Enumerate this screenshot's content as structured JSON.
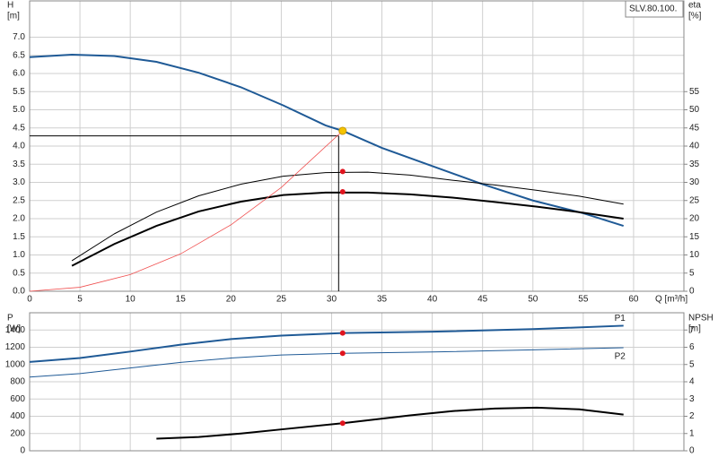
{
  "chart_data": [
    {
      "type": "line",
      "ylabel": "H",
      "yunit": "[m]",
      "y2label": "eta",
      "y2unit": "[%]",
      "xlabel": "Q [m³/h]",
      "annotation": "SLV.80.100.",
      "xlim": [
        0,
        65
      ],
      "xticks": [
        0,
        5,
        10,
        15,
        20,
        25,
        30,
        35,
        40,
        45,
        50,
        55,
        60
      ],
      "ylim": [
        0,
        8
      ],
      "yticks": [
        {
          "value": 0,
          "label": "0.0"
        },
        0.5,
        {
          "value": 1,
          "label": "1.0"
        },
        1.5,
        {
          "value": 2,
          "label": "2.0"
        },
        2.5,
        {
          "value": 3,
          "label": "3.0"
        },
        3.5,
        {
          "value": 4,
          "label": "4.0"
        },
        4.5,
        {
          "value": 5,
          "label": "5.0"
        },
        5.5,
        {
          "value": 6,
          "label": "6.0"
        },
        6.5,
        {
          "value": 7,
          "label": "7.0"
        }
      ],
      "y2lim": [
        0,
        80
      ],
      "y2ticks": [
        0,
        5,
        10,
        15,
        20,
        25,
        30,
        35,
        40,
        45,
        50,
        55
      ],
      "grid": true,
      "reference_lines": {
        "x": 30.7,
        "y": 4.28
      },
      "series": [
        {
          "color": "#1f5a96",
          "width": 2,
          "x": [
            0,
            4.2,
            8.4,
            12.6,
            16.8,
            21,
            25.2,
            29.4,
            31.1,
            35,
            40,
            45,
            50,
            55,
            59
          ],
          "values": [
            6.45,
            6.52,
            6.48,
            6.32,
            6.02,
            5.62,
            5.12,
            4.57,
            4.42,
            3.95,
            3.45,
            2.95,
            2.5,
            2.15,
            1.8
          ]
        },
        {
          "color": "#000000",
          "width": 1,
          "axis": "y2",
          "x": [
            4.2,
            8.4,
            12.6,
            16.8,
            21,
            25.2,
            29.4,
            33.6,
            37.8,
            42,
            46.2,
            50.4,
            54.6,
            59
          ],
          "values": [
            8.4,
            15.8,
            21.8,
            26.3,
            29.5,
            31.7,
            32.7,
            32.8,
            32,
            30.6,
            29.3,
            27.8,
            26.2,
            24
          ]
        },
        {
          "color": "#000000",
          "width": 2,
          "axis": "y2",
          "x": [
            4.2,
            8.4,
            12.6,
            16.8,
            21,
            25.2,
            29.4,
            33.6,
            37.8,
            42,
            46.2,
            50.4,
            54.6,
            59
          ],
          "values": [
            7,
            13,
            18,
            22,
            24.7,
            26.5,
            27.2,
            27.2,
            26.7,
            25.8,
            24.6,
            23.3,
            21.8,
            20
          ]
        },
        {
          "color": "#f05050",
          "width": 0.8,
          "arrow": true,
          "x": [
            0,
            5,
            10,
            15,
            20,
            25,
            31.1
          ],
          "values": [
            0,
            0.11,
            0.46,
            1.03,
            1.83,
            2.86,
            4.42
          ]
        },
        {
          "color": "#e0141e",
          "marker": "dot",
          "axis": "y2",
          "x": [
            31.1,
            31.1
          ],
          "values": [
            33,
            27.4
          ]
        },
        {
          "color": "#f5c400",
          "marker": "dot",
          "x": [
            31.1
          ],
          "values": [
            4.42
          ]
        }
      ]
    },
    {
      "type": "line",
      "ylabel": "P",
      "yunit": "[W]",
      "y2label": "NPSH",
      "y2unit": "[m]",
      "xlim": [
        0,
        65
      ],
      "xticks": [
        0,
        5,
        10,
        15,
        20,
        25,
        30,
        35,
        40,
        45,
        50,
        55,
        60
      ],
      "ylim": [
        0,
        1600
      ],
      "yticks": [
        0,
        200,
        400,
        600,
        800,
        1000,
        1200,
        1400
      ],
      "y2lim": [
        0,
        8
      ],
      "y2ticks": [
        0,
        1,
        2,
        3,
        4,
        5,
        6,
        7
      ],
      "grid": true,
      "series": [
        {
          "name": "P1",
          "color": "#1f5a96",
          "width": 2,
          "x": [
            0,
            5,
            10,
            15,
            20,
            25,
            31.1,
            40,
            50,
            59
          ],
          "values": [
            1030,
            1075,
            1150,
            1230,
            1295,
            1335,
            1365,
            1380,
            1410,
            1450
          ]
        },
        {
          "name": "P2",
          "color": "#1f5a96",
          "width": 1,
          "x": [
            0,
            5,
            10,
            15,
            20,
            25,
            31.1,
            40,
            50,
            59
          ],
          "values": [
            855,
            895,
            960,
            1025,
            1075,
            1110,
            1130,
            1145,
            1170,
            1195
          ]
        },
        {
          "color": "#000000",
          "width": 2,
          "axis": "y2",
          "x": [
            12.6,
            16.8,
            21,
            25.2,
            31.1,
            37.8,
            42,
            46.2,
            50.4,
            54.6,
            59
          ],
          "values": [
            0.7,
            0.8,
            1.0,
            1.25,
            1.6,
            2.05,
            2.3,
            2.45,
            2.5,
            2.4,
            2.1
          ]
        },
        {
          "color": "#e0141e",
          "marker": "dot",
          "x": [
            31.1,
            31.1
          ],
          "values": [
            1365,
            1130
          ]
        },
        {
          "color": "#e0141e",
          "marker": "dot",
          "axis": "y2",
          "x": [
            31.1
          ],
          "values": [
            1.6
          ]
        }
      ]
    }
  ]
}
